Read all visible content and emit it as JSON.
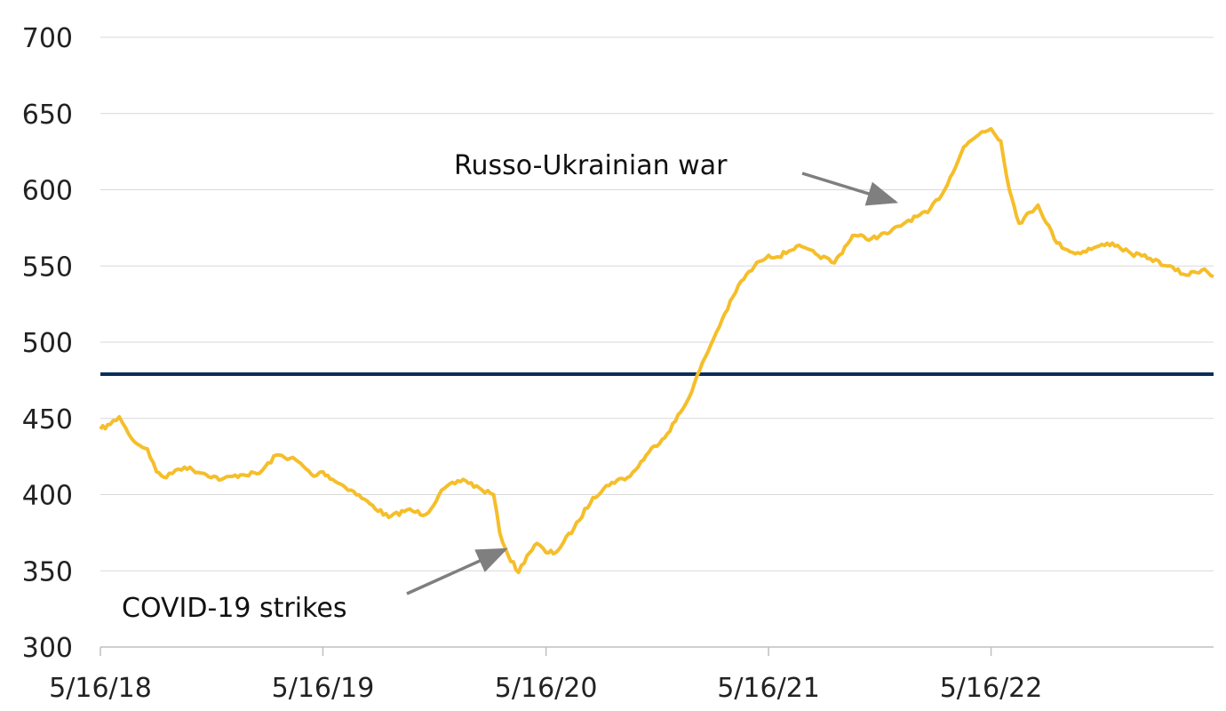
{
  "chart_data": {
    "type": "line",
    "title": "",
    "xlabel": "",
    "ylabel": "",
    "ylim": [
      300,
      700
    ],
    "yticks": [
      300,
      350,
      400,
      450,
      500,
      550,
      600,
      650,
      700
    ],
    "xlim": [
      "2018-05-16",
      "2023-05-16"
    ],
    "xticks": [
      {
        "date": "2018-05-16",
        "label": "5/16/18"
      },
      {
        "date": "2019-05-16",
        "label": "5/16/19"
      },
      {
        "date": "2020-05-16",
        "label": "5/16/20"
      },
      {
        "date": "2021-05-16",
        "label": "5/16/21"
      },
      {
        "date": "2022-05-16",
        "label": "5/16/22"
      }
    ],
    "grid": true,
    "series": [
      {
        "color": "#F5BE2A",
        "x": [
          "2018-05-16",
          "2018-06-01",
          "2018-06-16",
          "2018-07-01",
          "2018-07-16",
          "2018-08-01",
          "2018-08-16",
          "2018-09-01",
          "2018-09-16",
          "2018-10-01",
          "2018-11-01",
          "2018-12-01",
          "2019-01-01",
          "2019-02-01",
          "2019-03-01",
          "2019-04-01",
          "2019-05-01",
          "2019-05-16",
          "2019-06-01",
          "2019-07-01",
          "2019-08-01",
          "2019-09-01",
          "2019-10-01",
          "2019-11-01",
          "2019-12-01",
          "2020-01-01",
          "2020-02-01",
          "2020-02-20",
          "2020-03-01",
          "2020-03-15",
          "2020-04-01",
          "2020-04-15",
          "2020-05-01",
          "2020-05-16",
          "2020-06-01",
          "2020-07-01",
          "2020-08-01",
          "2020-09-01",
          "2020-10-01",
          "2020-11-01",
          "2020-12-01",
          "2021-01-01",
          "2021-02-01",
          "2021-03-01",
          "2021-04-01",
          "2021-05-01",
          "2021-05-16",
          "2021-06-01",
          "2021-07-01",
          "2021-08-01",
          "2021-09-01",
          "2021-10-01",
          "2021-11-01",
          "2021-12-01",
          "2022-01-01",
          "2022-02-01",
          "2022-03-01",
          "2022-04-01",
          "2022-05-01",
          "2022-05-16",
          "2022-06-01",
          "2022-06-15",
          "2022-07-01",
          "2022-08-01",
          "2022-09-01",
          "2022-10-01",
          "2022-11-01",
          "2022-12-01",
          "2023-01-01",
          "2023-02-01",
          "2023-03-01",
          "2023-04-01",
          "2023-05-01",
          "2023-05-16"
        ],
        "values": [
          443,
          446,
          451,
          440,
          433,
          430,
          415,
          411,
          416,
          418,
          414,
          410,
          413,
          414,
          426,
          423,
          412,
          415,
          410,
          403,
          394,
          385,
          390,
          387,
          404,
          410,
          403,
          400,
          375,
          360,
          349,
          360,
          368,
          362,
          362,
          378,
          398,
          408,
          412,
          428,
          440,
          460,
          490,
          515,
          540,
          553,
          557,
          556,
          563,
          558,
          552,
          570,
          568,
          572,
          580,
          585,
          600,
          628,
          638,
          640,
          632,
          600,
          578,
          590,
          565,
          558,
          562,
          565,
          558,
          555,
          550,
          544,
          548,
          543
        ]
      }
    ],
    "reference_line": {
      "value": 479,
      "color": "#0B2D5E"
    },
    "annotations": [
      {
        "id": "war",
        "text": "Russo-Ukrainian war",
        "arrow_to": {
          "x": "2021-12-10",
          "y": 592
        }
      },
      {
        "id": "covid",
        "text": "COVID-19 strikes",
        "arrow_to": {
          "x": "2020-03-10",
          "y": 364
        }
      }
    ]
  }
}
